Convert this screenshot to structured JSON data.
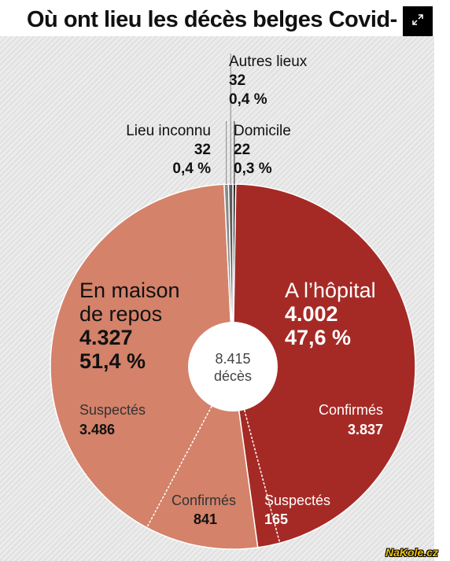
{
  "title": "Où ont lieu les décès belges Covid-",
  "watermark": "NaKole.cz",
  "icons": {
    "expand": "expand-icon"
  },
  "chart_data": {
    "type": "pie",
    "total": {
      "value": "8.415",
      "label": "décès"
    },
    "slices": [
      {
        "key": "hopital",
        "label": "A l’hôpital",
        "count": "4.002",
        "percent": "47,6 %",
        "value": 4002,
        "color": "#a52a25",
        "sub": [
          {
            "label": "Confirmés",
            "count": "3.837",
            "value": 3837
          },
          {
            "label": "Suspectés",
            "count": "165",
            "value": 165
          }
        ]
      },
      {
        "key": "maison",
        "label_lines": [
          "En maison",
          "de repos"
        ],
        "count": "4.327",
        "percent": "51,4 %",
        "value": 4327,
        "color": "#d4826a",
        "sub": [
          {
            "label": "Confirmés",
            "count": "841",
            "value": 841
          },
          {
            "label": "Suspectés",
            "count": "3.486",
            "value": 3486
          }
        ]
      },
      {
        "key": "inconnu",
        "label": "Lieu inconnu",
        "count": "32",
        "percent": "0,4 %",
        "value": 32,
        "color": "#8a8a8a"
      },
      {
        "key": "autres",
        "label": "Autres lieux",
        "count": "32",
        "percent": "0,4 %",
        "value": 32,
        "color": "#5b5b5b"
      },
      {
        "key": "domicile",
        "label": "Domicile",
        "count": "22",
        "percent": "0,3 %",
        "value": 22,
        "color": "#222222"
      }
    ]
  }
}
